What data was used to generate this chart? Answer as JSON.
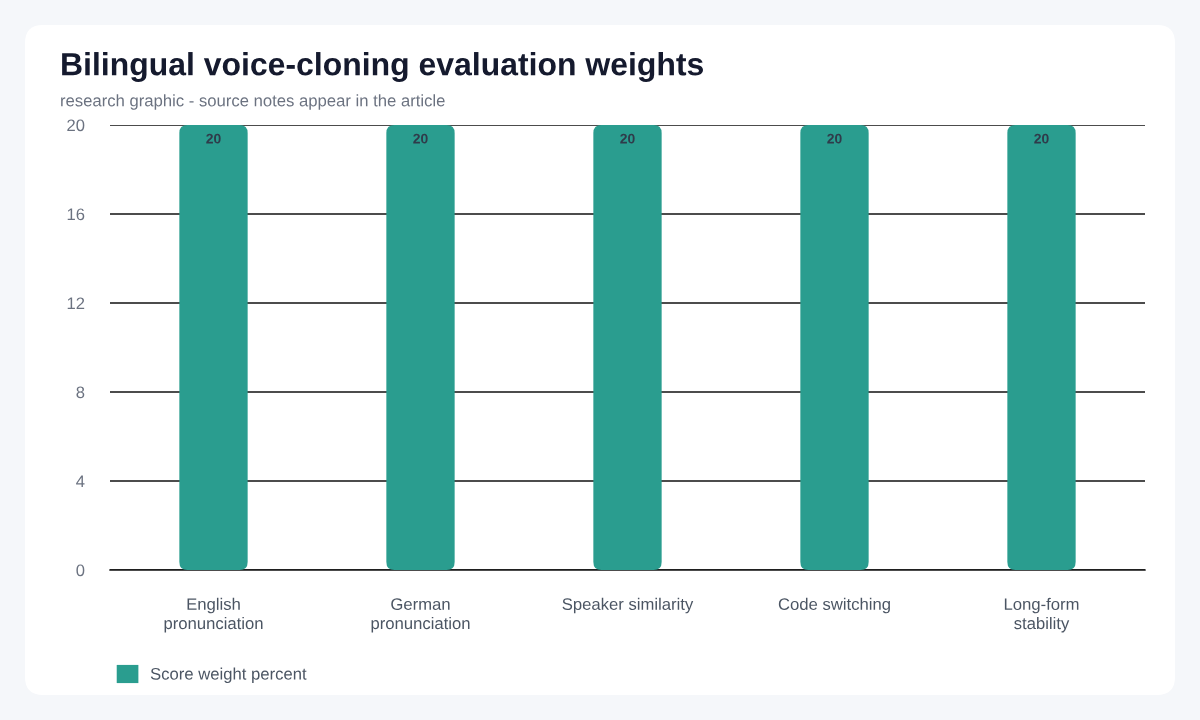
{
  "chart_data": {
    "type": "bar",
    "title": "Bilingual voice-cloning evaluation weights",
    "subtitle": "research graphic - source notes appear in the article",
    "categories": [
      "English\npronunciation",
      "German\npronunciation",
      "Speaker similarity",
      "Code switching",
      "Long-form\nstability"
    ],
    "series": [
      {
        "name": "Score weight percent",
        "color": "#2a9d8f",
        "values": [
          20,
          20,
          20,
          20,
          20
        ]
      }
    ],
    "ylim": [
      0,
      20
    ],
    "yticks": [
      0,
      4,
      8,
      12,
      16,
      20
    ],
    "grid": "y",
    "legend": "bottom",
    "data_labels": true
  }
}
